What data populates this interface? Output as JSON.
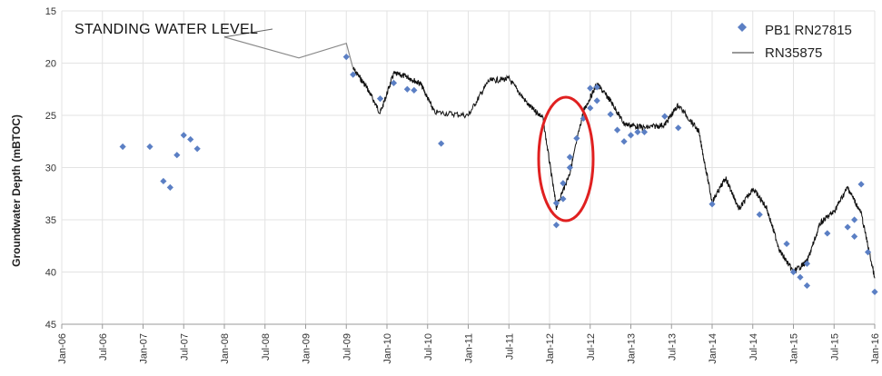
{
  "chart_data": {
    "type": "scatter",
    "title": "",
    "xlabel": "",
    "ylabel": "Groundwater Depth (mBTOC)",
    "ylim": [
      45,
      15
    ],
    "y_inverted": true,
    "y_ticks": [
      "15",
      "20",
      "25",
      "30",
      "35",
      "40",
      "45"
    ],
    "x_range": [
      "2006-01",
      "2016-01"
    ],
    "x_ticks": [
      "Jan-06",
      "Jul-06",
      "Jan-07",
      "Jul-07",
      "Jan-08",
      "Jul-08",
      "Jan-09",
      "Jul-09",
      "Jan-10",
      "Jul-10",
      "Jan-11",
      "Jul-11",
      "Jan-12",
      "Jul-12",
      "Jan-13",
      "Jul-13",
      "Jan-14",
      "Jul-14",
      "Jan-15",
      "Jul-15",
      "Jan-16"
    ],
    "grid": true,
    "legend_position": "top-right",
    "annotation": "STANDING WATER LEVEL",
    "highlight": "red ellipse around Mar-12 drawdown",
    "series": [
      {
        "name": "PB1 RN27815",
        "type": "scatter",
        "color": "#5b7fc4",
        "points": [
          [
            "2006-10",
            28.0
          ],
          [
            "2007-02",
            28.0
          ],
          [
            "2007-04",
            31.3
          ],
          [
            "2007-05",
            31.9
          ],
          [
            "2007-06",
            28.8
          ],
          [
            "2007-07",
            26.9
          ],
          [
            "2007-08",
            27.3
          ],
          [
            "2007-09",
            28.2
          ],
          [
            "2009-07",
            19.4
          ],
          [
            "2009-08",
            21.1
          ],
          [
            "2009-12",
            23.4
          ],
          [
            "2010-02",
            21.9
          ],
          [
            "2010-04",
            22.5
          ],
          [
            "2010-05",
            22.6
          ],
          [
            "2010-09",
            27.7
          ],
          [
            "2012-02",
            33.4
          ],
          [
            "2012-02",
            35.5
          ],
          [
            "2012-03",
            33.0
          ],
          [
            "2012-03",
            31.5
          ],
          [
            "2012-04",
            30.0
          ],
          [
            "2012-04",
            29.0
          ],
          [
            "2012-05",
            27.2
          ],
          [
            "2012-06",
            25.3
          ],
          [
            "2012-07",
            24.3
          ],
          [
            "2012-07",
            22.4
          ],
          [
            "2012-08",
            22.3
          ],
          [
            "2012-08",
            23.6
          ],
          [
            "2012-10",
            24.9
          ],
          [
            "2012-11",
            26.4
          ],
          [
            "2012-12",
            27.5
          ],
          [
            "2013-01",
            26.9
          ],
          [
            "2013-02",
            26.6
          ],
          [
            "2013-03",
            26.6
          ],
          [
            "2013-06",
            25.1
          ],
          [
            "2013-08",
            26.2
          ],
          [
            "2014-01",
            33.5
          ],
          [
            "2014-08",
            34.5
          ],
          [
            "2014-12",
            37.3
          ],
          [
            "2015-01",
            40.0
          ],
          [
            "2015-02",
            40.5
          ],
          [
            "2015-03",
            41.3
          ],
          [
            "2015-03",
            39.2
          ],
          [
            "2015-06",
            36.3
          ],
          [
            "2015-09",
            35.7
          ],
          [
            "2015-10",
            36.6
          ],
          [
            "2015-10",
            35.0
          ],
          [
            "2015-11",
            31.6
          ],
          [
            "2015-12",
            38.1
          ],
          [
            "2016-01",
            41.9
          ]
        ]
      },
      {
        "name": "RN35875",
        "type": "line",
        "color": "#555555",
        "points": [
          [
            "2008-01",
            17.5
          ],
          [
            "2008-12",
            19.5
          ],
          [
            "2009-07",
            18.1
          ],
          [
            "2009-08",
            20.5
          ],
          [
            "2009-10",
            22.3
          ],
          [
            "2009-12",
            24.8
          ],
          [
            "2010-02",
            21.0
          ],
          [
            "2010-04",
            21.3
          ],
          [
            "2010-06",
            22.0
          ],
          [
            "2010-08",
            24.7
          ],
          [
            "2011-01",
            25.0
          ],
          [
            "2011-04",
            21.7
          ],
          [
            "2011-07",
            21.5
          ],
          [
            "2011-10",
            24.1
          ],
          [
            "2011-12",
            25.2
          ],
          [
            "2012-02",
            33.8
          ],
          [
            "2012-04",
            30.5
          ],
          [
            "2012-06",
            24.6
          ],
          [
            "2012-08",
            22.0
          ],
          [
            "2012-10",
            23.6
          ],
          [
            "2012-12",
            25.8
          ],
          [
            "2013-03",
            26.2
          ],
          [
            "2013-06",
            25.9
          ],
          [
            "2013-08",
            24.0
          ],
          [
            "2013-11",
            26.5
          ],
          [
            "2014-01",
            33.3
          ],
          [
            "2014-03",
            31.0
          ],
          [
            "2014-05",
            34.0
          ],
          [
            "2014-07",
            32.0
          ],
          [
            "2014-09",
            33.8
          ],
          [
            "2014-11",
            38.0
          ],
          [
            "2015-01",
            40.0
          ],
          [
            "2015-03",
            39.0
          ],
          [
            "2015-05",
            35.3
          ],
          [
            "2015-07",
            34.2
          ],
          [
            "2015-09",
            31.9
          ],
          [
            "2015-11",
            34.4
          ],
          [
            "2016-01",
            40.6
          ]
        ]
      }
    ]
  },
  "colors": {
    "highlight": "#e02020",
    "grid": "#e3e3e3",
    "axis": "#999999"
  }
}
